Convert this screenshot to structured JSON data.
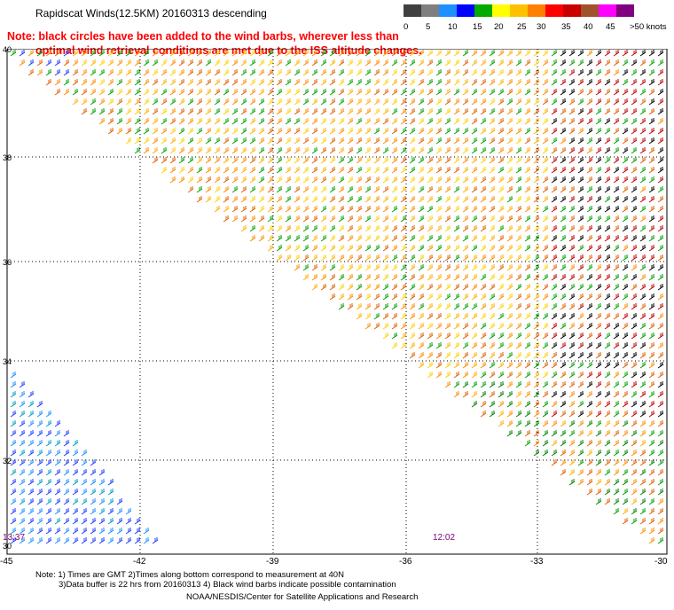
{
  "header": {
    "title": "Rapidscat Winds(12.5KM) 20160313 descending",
    "note_line1": "Note: black circles have been added to the wind barbs, wherever less than",
    "note_line2": "optimal wind retrieval conditions are met due to the ISS altitude changes."
  },
  "legend": {
    "colors": [
      "#404040",
      "#7f7f7f",
      "#1e90ff",
      "#0000ff",
      "#00aa00",
      "#ffff00",
      "#ffc000",
      "#ff8000",
      "#ff0000",
      "#c80000",
      "#a0522d",
      "#ff00ff",
      "#800080"
    ],
    "labels": [
      "0",
      "5",
      "10",
      "15",
      "20",
      "25",
      "30",
      "35",
      "40",
      "45",
      ">50 knots"
    ]
  },
  "map": {
    "lat_labels": [
      "40",
      "38",
      "36",
      "34",
      "32",
      "30"
    ],
    "lon_labels": [
      "-45",
      "-42",
      "-39",
      "-36",
      "-33",
      "-30"
    ],
    "time_left": "13:37",
    "time_right": "12:02"
  },
  "footer": {
    "line1": "Note: 1) Times are GMT 2)Times along bottom correspond to measurement at 40N",
    "line2": "3)Data buffer is 22 hrs from 20160313 4) Black wind barbs indicate possible contamination",
    "line3": "NOAA/NESDIS/Center for Satellite Applications and Research"
  }
}
